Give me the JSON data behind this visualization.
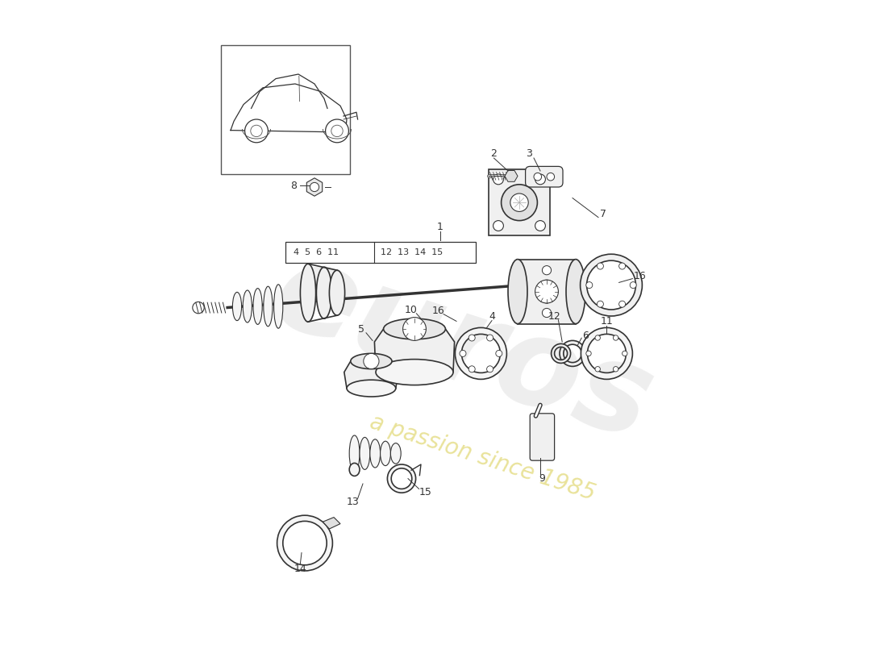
{
  "bg_color": "#ffffff",
  "line_color": "#333333",
  "watermark1": "euros",
  "watermark2": "a passion since 1985",
  "shaft_label_left": "4  5  6  11",
  "shaft_label_right": "12  13  14  15"
}
